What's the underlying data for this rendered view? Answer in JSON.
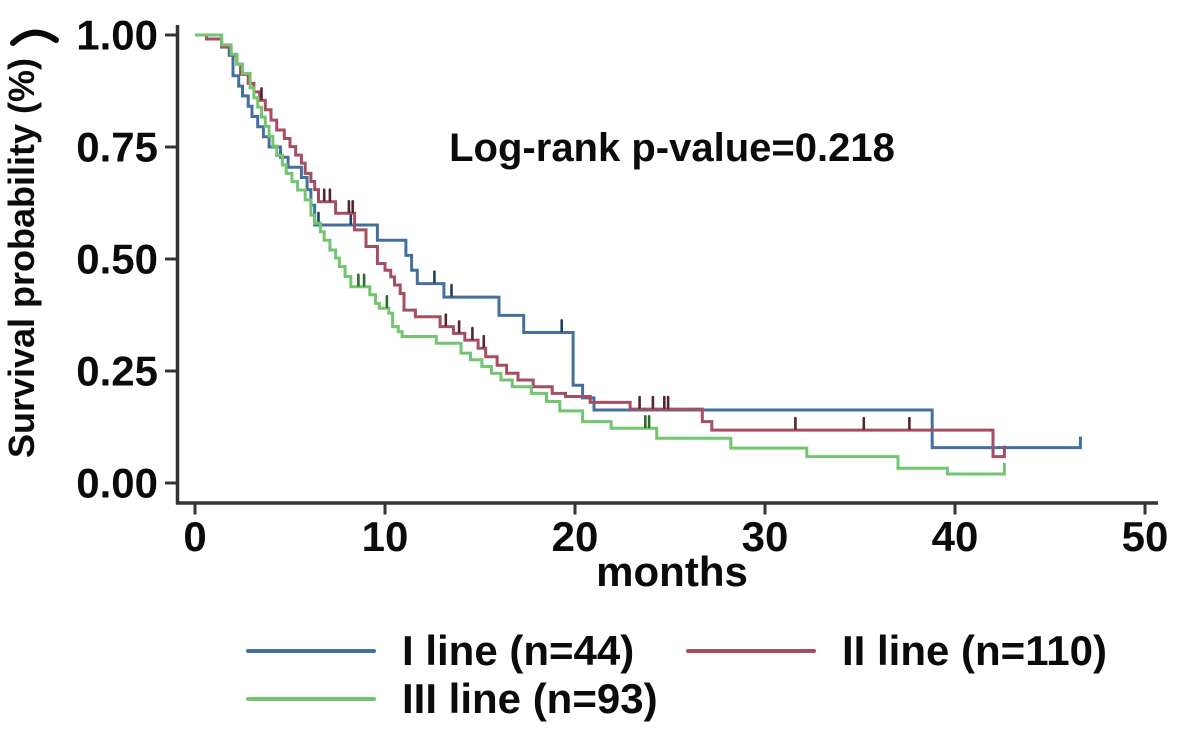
{
  "figure": {
    "annotation": "Log-rank p-value=0.218",
    "background_color": "#ffffff",
    "axis_color": "#343434",
    "text_color": "#0b0b0b"
  },
  "chart_data": {
    "type": "line",
    "subtype": "kaplan-meier-step",
    "title": "",
    "annotation": "Log-rank p-value=0.218",
    "xlabel": "months",
    "ylabel": "Survival probability (%)",
    "xlim": [
      0,
      50
    ],
    "ylim": [
      0.0,
      1.0
    ],
    "grid": false,
    "legend_position": "bottom",
    "x_ticks": [
      {
        "value": 0,
        "label": "0"
      },
      {
        "value": 10,
        "label": "10"
      },
      {
        "value": 20,
        "label": "20"
      },
      {
        "value": 30,
        "label": "30"
      },
      {
        "value": 40,
        "label": "40"
      },
      {
        "value": 50,
        "label": "50"
      }
    ],
    "y_ticks": [
      {
        "value": 1.0,
        "label": "1.00"
      },
      {
        "value": 0.75,
        "label": "0.75"
      },
      {
        "value": 0.5,
        "label": "0.50"
      },
      {
        "value": 0.25,
        "label": "0.25"
      },
      {
        "value": 0.0,
        "label": "0.00"
      }
    ],
    "series": [
      {
        "label": "I line (n=44)",
        "color": "#44709d",
        "censor_color": "#223f5c",
        "end_time": 46.6,
        "end_tick": true,
        "censors": [
          6.5,
          8.2,
          12.6,
          13.5,
          19.3
        ],
        "points": [
          [
            0,
            1.0
          ],
          [
            1.4,
            0.977
          ],
          [
            1.8,
            0.955
          ],
          [
            2.0,
            0.909
          ],
          [
            2.3,
            0.886
          ],
          [
            2.5,
            0.864
          ],
          [
            2.8,
            0.841
          ],
          [
            3.0,
            0.818
          ],
          [
            3.3,
            0.795
          ],
          [
            3.6,
            0.773
          ],
          [
            3.9,
            0.75
          ],
          [
            4.5,
            0.727
          ],
          [
            4.9,
            0.705
          ],
          [
            5.6,
            0.682
          ],
          [
            5.9,
            0.655
          ],
          [
            6.1,
            0.62
          ],
          [
            6.3,
            0.576
          ],
          [
            9.6,
            0.542
          ],
          [
            11.1,
            0.508
          ],
          [
            11.4,
            0.475
          ],
          [
            11.7,
            0.445
          ],
          [
            13.1,
            0.415
          ],
          [
            16.0,
            0.374
          ],
          [
            17.3,
            0.336
          ],
          [
            19.9,
            0.218
          ],
          [
            20.4,
            0.19
          ],
          [
            21.0,
            0.163
          ],
          [
            38.8,
            0.079
          ]
        ]
      },
      {
        "label": "II line (n=110)",
        "color": "#a54e62",
        "censor_color": "#54242f",
        "end_time": 42.6,
        "end_tick": true,
        "censors": [
          3.5,
          6.8,
          7.1,
          8.1,
          8.3,
          13.2,
          13.9,
          14.6,
          15.2,
          23.4,
          24.1,
          24.7,
          24.9,
          31.6,
          35.2,
          37.6
        ],
        "points": [
          [
            0,
            1.0
          ],
          [
            0.6,
            0.991
          ],
          [
            1.4,
            0.973
          ],
          [
            1.9,
            0.955
          ],
          [
            2.2,
            0.935
          ],
          [
            2.4,
            0.912
          ],
          [
            2.8,
            0.892
          ],
          [
            3.1,
            0.873
          ],
          [
            3.4,
            0.854
          ],
          [
            3.7,
            0.833
          ],
          [
            4.0,
            0.81
          ],
          [
            4.3,
            0.788
          ],
          [
            4.7,
            0.769
          ],
          [
            5.0,
            0.751
          ],
          [
            5.3,
            0.732
          ],
          [
            5.6,
            0.714
          ],
          [
            5.8,
            0.691
          ],
          [
            6.1,
            0.673
          ],
          [
            6.3,
            0.655
          ],
          [
            6.5,
            0.628
          ],
          [
            7.4,
            0.602
          ],
          [
            8.4,
            0.565
          ],
          [
            9.0,
            0.528
          ],
          [
            9.6,
            0.49
          ],
          [
            10.0,
            0.475
          ],
          [
            10.3,
            0.46
          ],
          [
            10.5,
            0.442
          ],
          [
            10.8,
            0.423
          ],
          [
            11.0,
            0.386
          ],
          [
            11.6,
            0.371
          ],
          [
            12.9,
            0.349
          ],
          [
            13.6,
            0.334
          ],
          [
            14.2,
            0.319
          ],
          [
            14.9,
            0.301
          ],
          [
            15.3,
            0.282
          ],
          [
            15.9,
            0.263
          ],
          [
            16.4,
            0.245
          ],
          [
            17.0,
            0.23
          ],
          [
            17.8,
            0.215
          ],
          [
            18.8,
            0.2
          ],
          [
            19.5,
            0.193
          ],
          [
            20.8,
            0.18
          ],
          [
            22.9,
            0.165
          ],
          [
            26.7,
            0.137
          ],
          [
            27.2,
            0.118
          ],
          [
            42.0,
            0.059
          ]
        ]
      },
      {
        "label": "III line (n=93)",
        "color": "#74c56f",
        "censor_color": "#2e6b2b",
        "end_time": 42.6,
        "end_tick": true,
        "censors": [
          8.6,
          8.9,
          10.1,
          23.7,
          23.9
        ],
        "points": [
          [
            0,
            1.0
          ],
          [
            1.4,
            0.978
          ],
          [
            1.9,
            0.957
          ],
          [
            2.2,
            0.935
          ],
          [
            2.5,
            0.914
          ],
          [
            2.9,
            0.882
          ],
          [
            3.1,
            0.86
          ],
          [
            3.3,
            0.839
          ],
          [
            3.5,
            0.817
          ],
          [
            3.7,
            0.796
          ],
          [
            3.9,
            0.774
          ],
          [
            4.1,
            0.752
          ],
          [
            4.3,
            0.731
          ],
          [
            4.6,
            0.71
          ],
          [
            4.8,
            0.691
          ],
          [
            5.1,
            0.673
          ],
          [
            5.4,
            0.654
          ],
          [
            5.8,
            0.632
          ],
          [
            6.1,
            0.598
          ],
          [
            6.3,
            0.58
          ],
          [
            6.6,
            0.561
          ],
          [
            6.8,
            0.542
          ],
          [
            7.1,
            0.52
          ],
          [
            7.4,
            0.502
          ],
          [
            7.6,
            0.483
          ],
          [
            7.9,
            0.461
          ],
          [
            8.2,
            0.438
          ],
          [
            9.2,
            0.42
          ],
          [
            9.5,
            0.401
          ],
          [
            9.7,
            0.39
          ],
          [
            10.2,
            0.379
          ],
          [
            10.4,
            0.349
          ],
          [
            10.7,
            0.338
          ],
          [
            10.9,
            0.327
          ],
          [
            12.7,
            0.312
          ],
          [
            14.0,
            0.29
          ],
          [
            14.5,
            0.275
          ],
          [
            15.1,
            0.26
          ],
          [
            15.6,
            0.245
          ],
          [
            16.1,
            0.23
          ],
          [
            16.7,
            0.215
          ],
          [
            17.7,
            0.2
          ],
          [
            18.5,
            0.182
          ],
          [
            19.2,
            0.161
          ],
          [
            20.4,
            0.137
          ],
          [
            21.9,
            0.122
          ],
          [
            24.3,
            0.1
          ],
          [
            28.2,
            0.078
          ],
          [
            32.2,
            0.059
          ],
          [
            37.0,
            0.033
          ],
          [
            39.6,
            0.02
          ]
        ]
      }
    ]
  }
}
